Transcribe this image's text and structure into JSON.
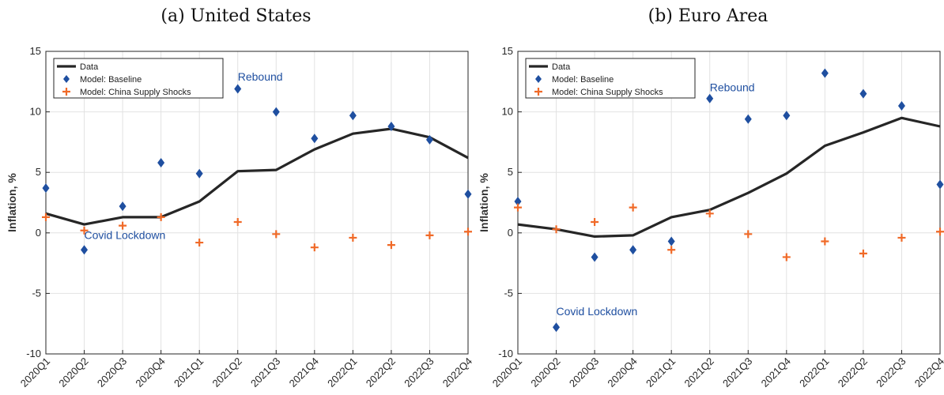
{
  "colors": {
    "data_line": "#262626",
    "baseline": "#1f4fa0",
    "china": "#f06a28",
    "annotation": "#1f4fa0",
    "grid": "#e2e2e2"
  },
  "chart_data": [
    {
      "type": "line",
      "title": "(a) United States",
      "ylabel": "Inflation, %",
      "categories": [
        "2020Q1",
        "2020Q2",
        "2020Q3",
        "2020Q4",
        "2021Q1",
        "2021Q2",
        "2021Q3",
        "2021Q4",
        "2022Q1",
        "2022Q2",
        "2022Q3",
        "2022Q4"
      ],
      "ylim": [
        -10,
        15
      ],
      "yticks": [
        -10,
        -5,
        0,
        5,
        10,
        15
      ],
      "grid": true,
      "legend_position": "top-left",
      "series": [
        {
          "name": "Data",
          "style": "line",
          "values": [
            1.6,
            0.7,
            1.3,
            1.3,
            2.6,
            5.1,
            5.2,
            6.9,
            8.2,
            8.6,
            7.9,
            6.2
          ]
        },
        {
          "name": "Model: Baseline",
          "style": "diamond",
          "values": [
            3.7,
            -1.4,
            2.2,
            5.8,
            4.9,
            11.9,
            10.0,
            7.8,
            9.7,
            8.8,
            7.7,
            3.2
          ]
        },
        {
          "name": "Model: China Supply Shocks",
          "style": "plus",
          "values": [
            1.3,
            0.2,
            0.6,
            1.3,
            -0.8,
            0.9,
            -0.1,
            -1.2,
            -0.4,
            -1.0,
            -0.2,
            0.1
          ]
        }
      ],
      "annotations": [
        {
          "text": "Covid Lockdown",
          "category": "2020Q2",
          "value": -0.5
        },
        {
          "text": "Rebound",
          "category": "2021Q2",
          "value": 12.6
        }
      ]
    },
    {
      "type": "line",
      "title": "(b) Euro Area",
      "ylabel": "Inflation, %",
      "categories": [
        "2020Q1",
        "2020Q2",
        "2020Q3",
        "2020Q4",
        "2021Q1",
        "2021Q2",
        "2021Q3",
        "2021Q4",
        "2022Q1",
        "2022Q2",
        "2022Q3",
        "2022Q4"
      ],
      "ylim": [
        -10,
        15
      ],
      "yticks": [
        -10,
        -5,
        0,
        5,
        10,
        15
      ],
      "grid": true,
      "legend_position": "top-left",
      "series": [
        {
          "name": "Data",
          "style": "line",
          "values": [
            0.7,
            0.3,
            -0.3,
            -0.2,
            1.3,
            1.9,
            3.3,
            4.9,
            7.2,
            8.3,
            9.5,
            8.8
          ]
        },
        {
          "name": "Model: Baseline",
          "style": "diamond",
          "values": [
            2.6,
            -7.8,
            -2.0,
            -1.4,
            -0.7,
            11.1,
            9.4,
            9.7,
            13.2,
            11.5,
            10.5,
            4.0
          ]
        },
        {
          "name": "Model: China Supply Shocks",
          "style": "plus",
          "values": [
            2.1,
            0.3,
            0.9,
            2.1,
            -1.4,
            1.6,
            -0.1,
            -2.0,
            -0.7,
            -1.7,
            -0.4,
            0.1
          ]
        }
      ],
      "annotations": [
        {
          "text": "Covid Lockdown",
          "category": "2020Q2",
          "value": -6.8
        },
        {
          "text": "Rebound",
          "category": "2021Q2",
          "value": 11.7
        }
      ]
    }
  ]
}
